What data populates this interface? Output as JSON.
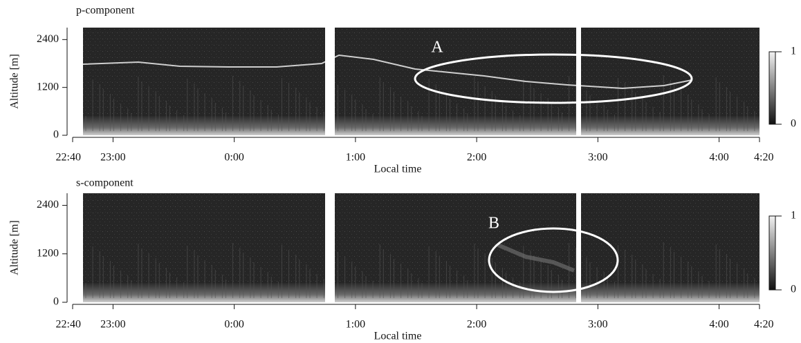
{
  "chart_data": [
    {
      "type": "heatmap",
      "title": "p-component",
      "x_label": "Local time",
      "y_label": "Altitude [m]",
      "xlim": [
        "22:40",
        "4:20"
      ],
      "xticks": [
        "22:40",
        "23:00",
        "0:00",
        "1:00",
        "2:00",
        "3:00",
        "4:00",
        "4:20"
      ],
      "ylim": [
        0,
        2700
      ],
      "yticks": [
        0,
        1200,
        2400
      ],
      "colorbar_ticks": [
        0,
        1
      ],
      "annotation": "A"
    },
    {
      "type": "heatmap",
      "title": "s-component",
      "x_label": "Local time",
      "y_label": "Altitude [m]",
      "xlim": [
        "22:40",
        "4:20"
      ],
      "xticks": [
        "22:40",
        "23:00",
        "0:00",
        "1:00",
        "2:00",
        "3:00",
        "4:00",
        "4:20"
      ],
      "ylim": [
        0,
        2700
      ],
      "yticks": [
        0,
        1200,
        2400
      ],
      "colorbar_ticks": [
        0,
        1
      ],
      "annotation": "B"
    }
  ]
}
